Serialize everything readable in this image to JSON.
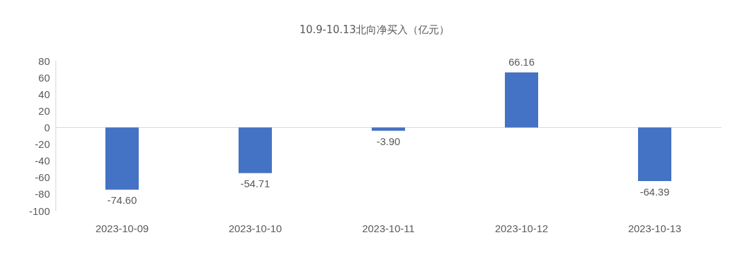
{
  "chart_data": {
    "type": "bar",
    "title": "10.9-10.13北向净买入（亿元）",
    "categories": [
      "2023-10-09",
      "2023-10-10",
      "2023-10-11",
      "2023-10-12",
      "2023-10-13"
    ],
    "values": [
      -74.6,
      -54.71,
      -3.9,
      66.16,
      -64.39
    ],
    "value_labels": [
      "-74.60",
      "-54.71",
      "-3.90",
      "66.16",
      "-64.39"
    ],
    "color": "#4472c4",
    "ylim": [
      -100,
      80
    ],
    "yticks": [
      -100,
      -80,
      -60,
      -40,
      -20,
      0,
      20,
      40,
      60,
      80
    ]
  }
}
